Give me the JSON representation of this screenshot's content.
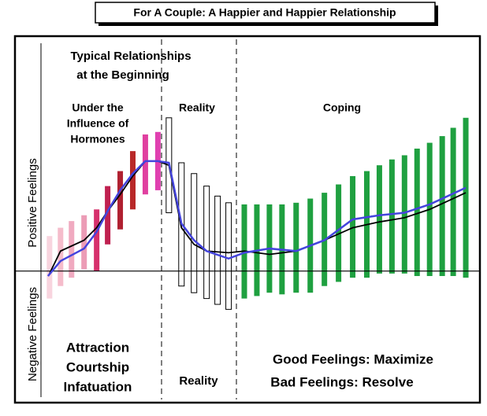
{
  "chart_data": {
    "type": "range",
    "title": "For A Couple: A Happier and Happier Relationship",
    "ylabel_positive": "Positive Feelings",
    "ylabel_negative": "Negative Feelings",
    "annotations": {
      "typical": [
        "Typical Relationships",
        "at the Beginning"
      ],
      "hormones": [
        "Under the",
        "Influence of",
        "Hormones"
      ],
      "reality_top": "Reality",
      "coping": "Coping",
      "early": [
        "Attraction",
        "Courtship",
        "Infatuation"
      ],
      "reality_bottom": "Reality",
      "good": "Good Feelings: Maximize",
      "bad": "Bad Feelings: Resolve"
    },
    "xlim": [
      18,
      610
    ],
    "ylim": [
      -158,
      282
    ],
    "bars": {
      "x": [
        62,
        76,
        90,
        106,
        122,
        136,
        152,
        168,
        184,
        200,
        214,
        230,
        246,
        262,
        276,
        290,
        310,
        326,
        342,
        358,
        376,
        394,
        412,
        430,
        448,
        466,
        482,
        498,
        514,
        530,
        546,
        562,
        576,
        592
      ],
      "high": [
        42,
        52,
        60,
        67,
        74,
        102,
        120,
        144,
        164,
        167,
        184,
        130,
        117,
        102,
        90,
        82,
        80,
        80,
        80,
        80,
        82,
        87,
        94,
        104,
        114,
        120,
        127,
        134,
        139,
        147,
        154,
        162,
        172,
        184
      ],
      "low": [
        -33,
        -18,
        -8,
        2,
        0,
        32,
        50,
        74,
        92,
        97,
        70,
        -18,
        -26,
        -33,
        -40,
        -46,
        -33,
        -30,
        -26,
        -28,
        -26,
        -26,
        -18,
        -13,
        -8,
        -8,
        -3,
        -3,
        -3,
        -6,
        -6,
        -6,
        -6,
        -8
      ],
      "colors": [
        "#f8d4de",
        "#f5bccb",
        "#f0aac0",
        "#ec9cb6",
        "#d6306c",
        "#c02050",
        "#b02030",
        "#b82828",
        "#e040a0",
        "#e040b0",
        "#ffffff",
        "#ffffff",
        "#ffffff",
        "#ffffff",
        "#ffffff",
        "#ffffff",
        "#1fa040",
        "#1fa040",
        "#1fa040",
        "#1fa040",
        "#1fa040",
        "#1fa040",
        "#1fa040",
        "#1fa040",
        "#1fa040",
        "#1fa040",
        "#1fa040",
        "#1fa040",
        "#1fa040",
        "#1fa040",
        "#1fa040",
        "#1fa040",
        "#1fa040",
        "#1fa040"
      ]
    },
    "lines": [
      {
        "color": "#000000",
        "x": [
          62,
          76,
          106,
          122,
          136,
          152,
          168,
          184,
          200,
          214,
          230,
          246,
          262,
          290,
          310,
          342,
          376,
          412,
          448,
          482,
          514,
          546,
          592
        ],
        "values": [
          -3,
          24,
          37,
          52,
          72,
          92,
          114,
          132,
          132,
          127,
          52,
          32,
          24,
          22,
          24,
          20,
          24,
          37,
          52,
          59,
          64,
          74,
          94
        ]
      },
      {
        "color": "#4444dd",
        "x": [
          60,
          76,
          106,
          122,
          136,
          152,
          168,
          184,
          200,
          214,
          230,
          246,
          262,
          290,
          310,
          342,
          376,
          412,
          448,
          482,
          514,
          546,
          592
        ],
        "values": [
          -6,
          12,
          27,
          47,
          72,
          97,
          117,
          132,
          132,
          130,
          57,
          37,
          24,
          15,
          22,
          27,
          24,
          37,
          62,
          67,
          70,
          80,
          100
        ]
      }
    ]
  }
}
